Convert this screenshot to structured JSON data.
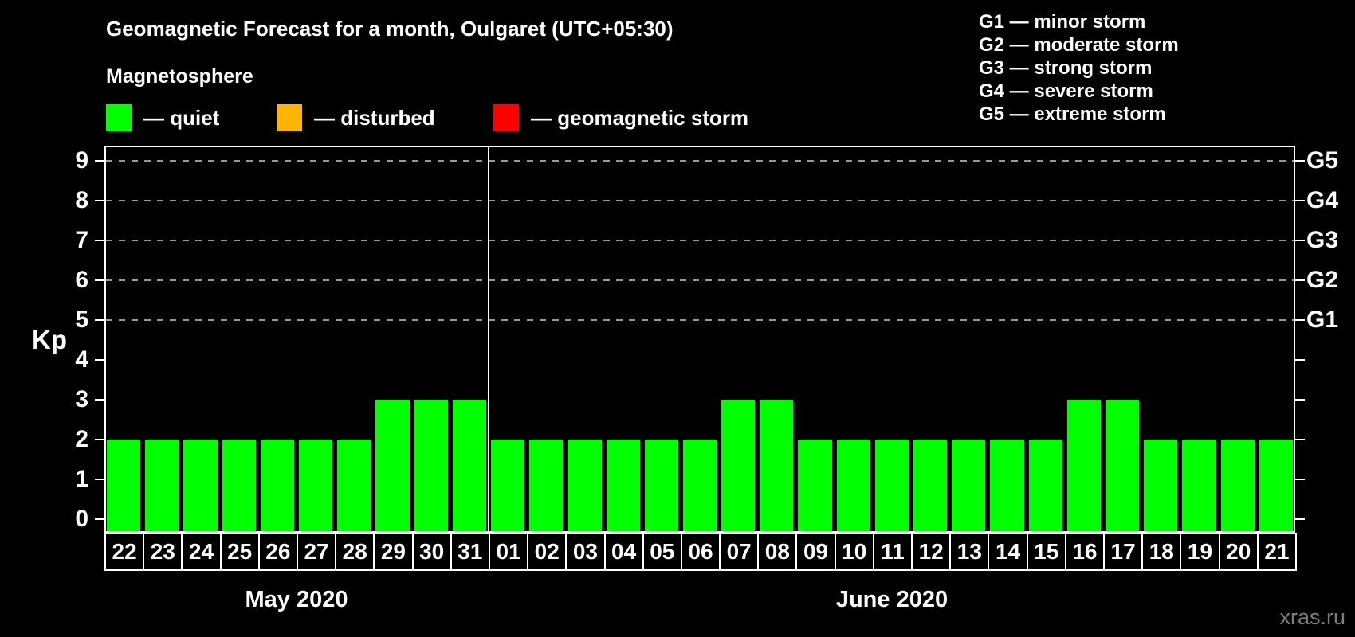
{
  "header": {
    "title": "Geomagnetic Forecast for a month, Oulgaret (UTC+05:30)",
    "subtitle": "Magnetosphere"
  },
  "legend": {
    "items": [
      {
        "name": "quiet",
        "label": "— quiet",
        "color": "#00ff00"
      },
      {
        "name": "disturbed",
        "label": "— disturbed",
        "color": "#ffb400"
      },
      {
        "name": "geomagnetic-storm",
        "label": "— geomagnetic storm",
        "color": "#ff0000"
      }
    ]
  },
  "g_scale_legend": [
    "G1 — minor storm",
    "G2 — moderate storm",
    "G3 — strong storm",
    "G4 — severe storm",
    "G5 — extreme storm"
  ],
  "watermark": "xras.ru",
  "colors": {
    "background": "#000000",
    "text": "#ffffff",
    "quiet": "#00ff00",
    "disturbed": "#ffb400",
    "storm": "#ff0000",
    "gridline": "#999999",
    "axis": "#ffffff",
    "watermark": "#7d7d7d"
  },
  "chart_data": {
    "type": "bar",
    "title": "Geomagnetic Forecast for a month, Oulgaret (UTC+05:30)",
    "xlabel": "",
    "ylabel": "Kp",
    "ylim": [
      -0.35,
      9.35
    ],
    "y_ticks": [
      0,
      1,
      2,
      3,
      4,
      5,
      6,
      7,
      8,
      9
    ],
    "gridlines_at": [
      5,
      6,
      7,
      8,
      9
    ],
    "grid": "dashed horizontal lines at Kp 5-9 only",
    "legend_position": "top",
    "bar_color": "#00ff00",
    "right_axis_labels": [
      {
        "kp": 9,
        "label": "G5"
      },
      {
        "kp": 8,
        "label": "G4"
      },
      {
        "kp": 7,
        "label": "G3"
      },
      {
        "kp": 6,
        "label": "G2"
      },
      {
        "kp": 5,
        "label": "G1"
      }
    ],
    "months": [
      {
        "label": "May 2020",
        "days": [
          "22",
          "23",
          "24",
          "25",
          "26",
          "27",
          "28",
          "29",
          "30",
          "31"
        ],
        "values": [
          2,
          2,
          2,
          2,
          2,
          2,
          2,
          3,
          3,
          3
        ]
      },
      {
        "label": "June 2020",
        "days": [
          "01",
          "02",
          "03",
          "04",
          "05",
          "06",
          "07",
          "08",
          "09",
          "10",
          "11",
          "12",
          "13",
          "14",
          "15",
          "16",
          "17",
          "18",
          "19",
          "20",
          "21"
        ],
        "values": [
          2,
          2,
          2,
          2,
          2,
          2,
          3,
          3,
          2,
          2,
          2,
          2,
          2,
          2,
          2,
          3,
          3,
          2,
          2,
          2,
          2
        ]
      }
    ]
  }
}
